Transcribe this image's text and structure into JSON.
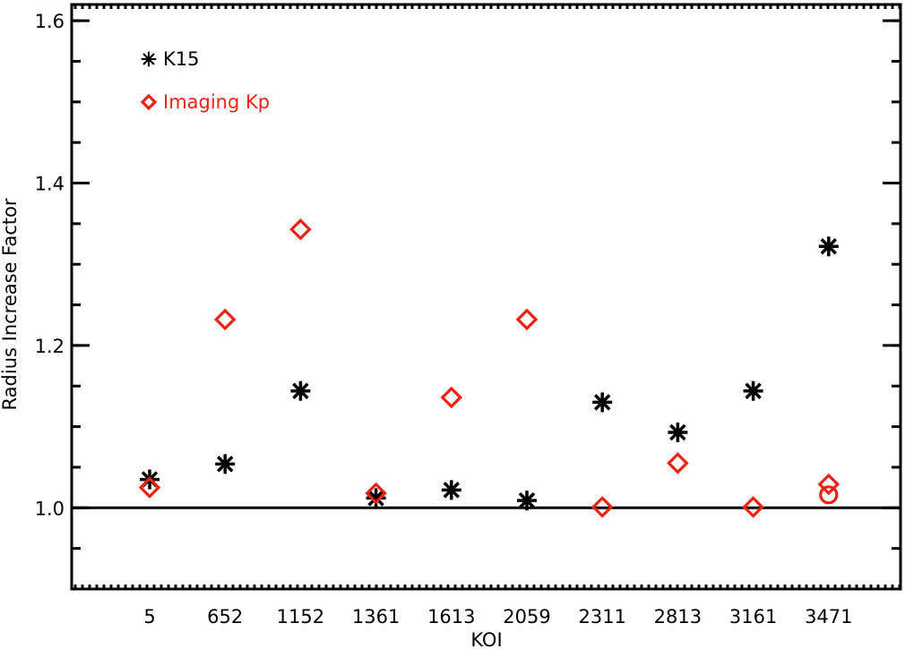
{
  "chart_data": {
    "type": "scatter",
    "categories": [
      "5",
      "652",
      "1152",
      "1361",
      "1613",
      "2059",
      "2311",
      "2813",
      "3161",
      "3471"
    ],
    "xlabel": "KOI",
    "ylabel": "Radius Increase Factor",
    "ylim": [
      0.9,
      1.62
    ],
    "yticks": [
      "1.0",
      "1.2",
      "1.4",
      "1.6"
    ],
    "reference_line": 1.0,
    "legend_position": "top-left",
    "series": [
      {
        "name": "K15",
        "marker": "asterisk",
        "color": "#000000",
        "values": [
          1.035,
          1.054,
          1.144,
          1.012,
          1.022,
          1.009,
          1.13,
          1.093,
          1.144,
          1.322
        ]
      },
      {
        "name": "Imaging Kp",
        "marker": "diamond",
        "color": "#ee2211",
        "values": [
          1.025,
          1.232,
          1.343,
          1.018,
          1.136,
          1.232,
          1.001,
          1.055,
          1.001,
          1.029
        ]
      }
    ],
    "extra_markers": [
      {
        "marker": "circle",
        "color": "#ee2211",
        "category": "3471",
        "value": 1.016
      }
    ]
  }
}
